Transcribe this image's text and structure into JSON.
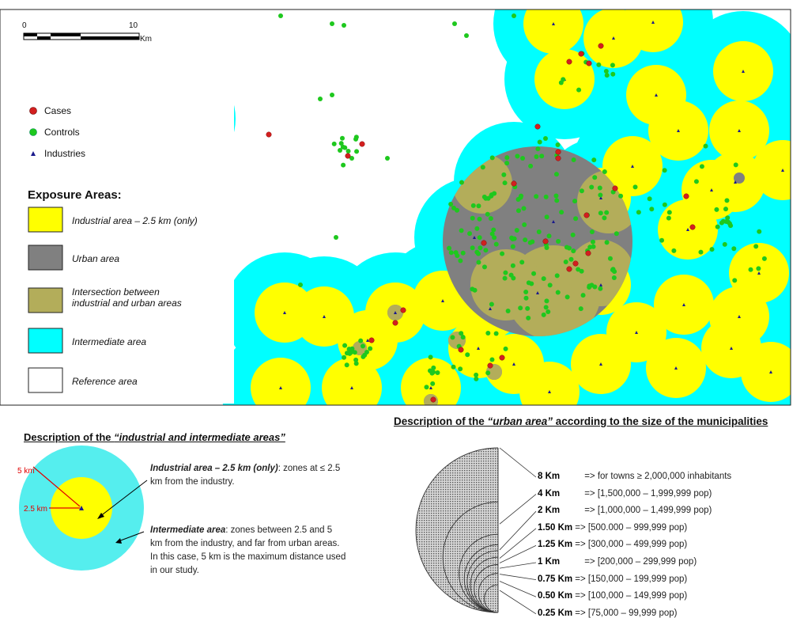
{
  "scale_bar": {
    "zero": "0",
    "ten": "10",
    "unit": "Km"
  },
  "legend": {
    "points": [
      {
        "label": "Cases",
        "color": "#d21f1f"
      },
      {
        "label": "Controls",
        "color": "#1ec81e"
      },
      {
        "label": "Industries",
        "color": "#1a1a8c"
      }
    ],
    "exposure_title": "Exposure Areas:",
    "areas": [
      {
        "label": "Industrial area – 2.5 km (only)",
        "color": "#ffff00"
      },
      {
        "label": "Urban area",
        "color": "#808080"
      },
      {
        "label": "Intersection between industrial and urban areas",
        "color": "#b3ad5a"
      },
      {
        "label": "Intermediate area",
        "color": "#00ffff"
      },
      {
        "label": "Reference area",
        "color": "#ffffff"
      }
    ]
  },
  "industrial_section": {
    "title_prefix": "Description of the ",
    "title_italic": "“industrial and intermediate areas”",
    "radius_5": "5 km",
    "radius_25": "2.5 km",
    "industrial_term": "Industrial area – 2.5 km (only)",
    "industrial_text": ": zones at ≤ 2.5 km from the industry.",
    "intermediate_term": "Intermediate area",
    "intermediate_text": ": zones between 2.5 and 5 km from the industry, and far from urban areas. In this case, 5 km is the maximum distance used in our study."
  },
  "urban_section": {
    "title_prefix": "Description of the ",
    "title_italic": "“urban area”",
    "title_suffix": " according to the size of the municipalities",
    "rows": [
      {
        "km": "8 Km",
        "text": "=> for towns ≥ 2,000,000 inhabitants",
        "r": 8
      },
      {
        "km": "4 Km",
        "text": "=> [1,500,000 – 1,999,999 pop)",
        "r": 4
      },
      {
        "km": "2 Km",
        "text": "=> [1,000,000 – 1,499,999 pop)",
        "r": 2
      },
      {
        "km": "1.50 Km",
        "text": "=> [500.000 – 999,999 pop)",
        "r": 1.5
      },
      {
        "km": "1.25 Km",
        "text": "=> [300,000 – 499,999 pop)",
        "r": 1.25
      },
      {
        "km": "1 Km",
        "text": "=> [200,000 – 299,999 pop)",
        "r": 1
      },
      {
        "km": "0.75 Km",
        "text": "=> [150,000 – 199,999 pop)",
        "r": 0.75
      },
      {
        "km": "0.50 Km",
        "text": "=> [100,000 – 149,999 pop)",
        "r": 0.5
      },
      {
        "km": "0.25 Km",
        "text": "=> [75,000 – 99,999 pop)",
        "r": 0.25
      }
    ]
  }
}
